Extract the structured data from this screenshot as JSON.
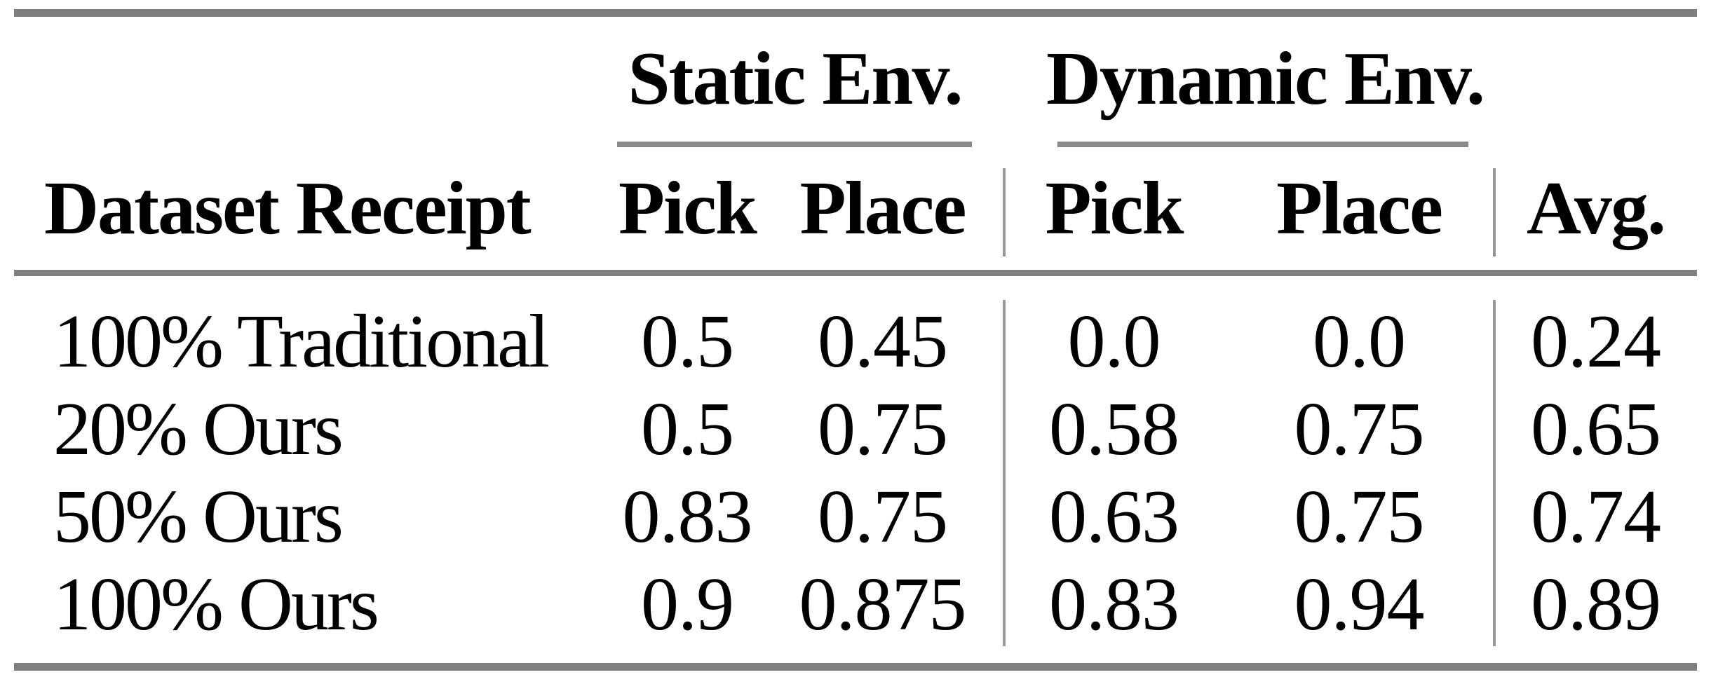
{
  "table": {
    "group_headers": [
      {
        "label": "Static Env."
      },
      {
        "label": "Dynamic Env."
      }
    ],
    "headers": {
      "dataset": "Dataset Receipt",
      "static_pick": "Pick",
      "static_place": "Place",
      "dynamic_pick": "Pick",
      "dynamic_place": "Place",
      "avg": "Avg."
    },
    "rows": [
      {
        "label": "100% Traditional",
        "values": [
          "0.5",
          "0.45",
          "0.0",
          "0.0",
          "0.24"
        ]
      },
      {
        "label": "20% Ours",
        "values": [
          "0.5",
          "0.75",
          "0.58",
          "0.75",
          "0.65"
        ]
      },
      {
        "label": "50% Ours",
        "values": [
          "0.83",
          "0.75",
          "0.63",
          "0.75",
          "0.74"
        ]
      },
      {
        "label": "100% Ours",
        "values": [
          "0.9",
          "0.875",
          "0.83",
          "0.94",
          "0.89"
        ]
      }
    ]
  },
  "colors": {
    "rule_gray": "#7f7f7f",
    "cmidrule_gray": "#8a8a8a",
    "divider_gray": "#989898",
    "text": "#000000",
    "background": "#ffffff"
  }
}
